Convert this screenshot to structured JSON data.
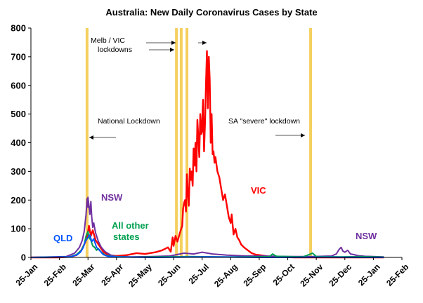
{
  "chart_data": {
    "type": "line",
    "title": "Australia: New Daily Coronavirus Cases by State",
    "xlabel": "",
    "ylabel": "",
    "ylim": [
      0,
      800
    ],
    "yticks": [
      "0",
      "100",
      "200",
      "300",
      "400",
      "500",
      "600",
      "700",
      "800"
    ],
    "xticks": [
      "25-Jan",
      "25-Feb",
      "25-Mar",
      "25-Apr",
      "25-May",
      "25-Jun",
      "25-Jul",
      "25-Aug",
      "25-Sep",
      "25-Oct",
      "25-Nov",
      "25-Dec",
      "25-Jan",
      "25-Feb"
    ],
    "grid": false,
    "legend": "none",
    "colors": {
      "VIC": "#ff0000",
      "NSW": "#7030a0",
      "QLD": "#0055ff",
      "All other states": "#00a050",
      "lockdown": "#f5d060"
    },
    "lockdown_dates": [
      "Mar 23",
      "Jun 28",
      "Jul 2",
      "Jul 8",
      "Nov 18"
    ],
    "series": [
      {
        "name": "VIC",
        "x": [
          "Jan 25",
          "Feb 25",
          "Mar 5",
          "Mar 12",
          "Mar 17",
          "Mar 20",
          "Mar 23",
          "Mar 26",
          "Mar 28",
          "Mar 30",
          "Apr 2",
          "Apr 6",
          "Apr 10",
          "Apr 15",
          "Apr 25",
          "May 5",
          "May 15",
          "May 25",
          "Jun 5",
          "Jun 12",
          "Jun 18",
          "Jun 21",
          "Jun 23",
          "Jun 25",
          "Jun 27",
          "Jun 29",
          "Jul 1",
          "Jul 3",
          "Jul 4",
          "Jul 5",
          "Jul 6",
          "Jul 7",
          "Jul 8",
          "Jul 9",
          "Jul 10",
          "Jul 11",
          "Jul 12",
          "Jul 13",
          "Jul 14",
          "Jul 15",
          "Jul 16",
          "Jul 17",
          "Jul 18",
          "Jul 19",
          "Jul 20",
          "Jul 21",
          "Jul 22",
          "Jul 23",
          "Jul 24",
          "Jul 25",
          "Jul 26",
          "Jul 27",
          "Jul 28",
          "Jul 29",
          "Jul 30",
          "Jul 31",
          "Aug 1",
          "Aug 2",
          "Aug 3",
          "Aug 4",
          "Aug 5",
          "Aug 6",
          "Aug 7",
          "Aug 8",
          "Aug 10",
          "Aug 12",
          "Aug 14",
          "Aug 16",
          "Aug 18",
          "Aug 20",
          "Aug 22",
          "Aug 24",
          "Aug 26",
          "Aug 28",
          "Aug 30",
          "Sep 1",
          "Sep 3",
          "Sep 5",
          "Sep 8",
          "Sep 12",
          "Sep 16",
          "Sep 20",
          "Sep 25",
          "Oct 5",
          "Oct 15",
          "Nov 1",
          "Dec 1",
          "Jan 1",
          "Feb 5"
        ],
        "values": [
          0,
          0,
          2,
          8,
          25,
          45,
          68,
          110,
          75,
          95,
          60,
          40,
          20,
          8,
          5,
          8,
          15,
          12,
          18,
          25,
          35,
          20,
          70,
          40,
          75,
          55,
          90,
          110,
          170,
          190,
          200,
          160,
          290,
          220,
          180,
          310,
          270,
          300,
          250,
          380,
          320,
          400,
          300,
          480,
          420,
          350,
          500,
          430,
          440,
          470,
          550,
          370,
          470,
          600,
          720,
          520,
          700,
          620,
          400,
          500,
          360,
          370,
          330,
          350,
          300,
          280,
          240,
          200,
          220,
          180,
          140,
          120,
          150,
          80,
          100,
          70,
          60,
          45,
          35,
          25,
          15,
          10,
          8,
          3,
          2,
          0,
          0,
          0,
          0
        ]
      },
      {
        "name": "NSW",
        "x": [
          "Jan 25",
          "Mar 1",
          "Mar 10",
          "Mar 15",
          "Mar 18",
          "Mar 20",
          "Mar 22",
          "Mar 23",
          "Mar 24",
          "Mar 25",
          "Mar 26",
          "Mar 27",
          "Mar 28",
          "Mar 29",
          "Mar 30",
          "Mar 31",
          "Apr 2",
          "Apr 5",
          "Apr 8",
          "Apr 12",
          "Apr 18",
          "Apr 25",
          "May 10",
          "Jun 1",
          "Jun 20",
          "Jul 5",
          "Jul 15",
          "Jul 25",
          "Aug 5",
          "Aug 20",
          "Sep 10",
          "Oct 1",
          "Oct 25",
          "Nov 20",
          "Dec 10",
          "Dec 15",
          "Dec 18",
          "Dec 20",
          "Dec 22",
          "Dec 25",
          "Dec 28",
          "Dec 31",
          "Jan 3",
          "Jan 8",
          "Jan 15",
          "Feb 5"
        ],
        "values": [
          0,
          3,
          15,
          35,
          60,
          90,
          150,
          205,
          175,
          210,
          180,
          150,
          195,
          140,
          105,
          120,
          85,
          55,
          35,
          20,
          8,
          3,
          2,
          3,
          5,
          15,
          12,
          18,
          12,
          8,
          5,
          5,
          3,
          3,
          5,
          12,
          28,
          35,
          22,
          18,
          25,
          12,
          10,
          6,
          4,
          2
        ]
      },
      {
        "name": "QLD",
        "x": [
          "Jan 25",
          "Mar 5",
          "Mar 12",
          "Mar 16",
          "Mar 19",
          "Mar 21",
          "Mar 23",
          "Mar 25",
          "Mar 27",
          "Mar 29",
          "Mar 31",
          "Apr 3",
          "Apr 6",
          "Apr 10",
          "Apr 15",
          "Apr 25",
          "Jun 1",
          "Aug 1",
          "Oct 1",
          "Dec 1",
          "Feb 5"
        ],
        "values": [
          0,
          2,
          8,
          18,
          35,
          55,
          65,
          70,
          78,
          55,
          65,
          35,
          25,
          10,
          4,
          2,
          0,
          2,
          0,
          1,
          0
        ]
      },
      {
        "name": "All other states",
        "x": [
          "Jan 25",
          "Mar 5",
          "Mar 12",
          "Mar 17",
          "Mar 20",
          "Mar 22",
          "Mar 24",
          "Mar 26",
          "Mar 28",
          "Mar 30",
          "Apr 1",
          "Apr 3",
          "Apr 5",
          "Apr 8",
          "Apr 12",
          "Apr 20",
          "May 10",
          "Jul 10",
          "Aug 10",
          "Sep 10",
          "Oct 5",
          "Oct 8",
          "Oct 12",
          "Nov 10",
          "Nov 15",
          "Nov 20",
          "Nov 25",
          "Dec 20",
          "Jan 10",
          "Feb 5"
        ],
        "values": [
          0,
          2,
          10,
          25,
          45,
          75,
          90,
          70,
          60,
          40,
          35,
          25,
          30,
          18,
          8,
          3,
          1,
          3,
          2,
          2,
          3,
          12,
          4,
          2,
          8,
          15,
          3,
          2,
          3,
          1
        ]
      }
    ],
    "annotations": [
      {
        "text": "Melb / VIC",
        "line2": "lockdowns",
        "arrow": "right"
      },
      {
        "text": "National Lockdown",
        "arrow": "left"
      },
      {
        "text": "SA \"severe\" lockdown",
        "arrow": "right"
      }
    ],
    "series_labels": [
      {
        "series": "NSW",
        "text": "NSW"
      },
      {
        "series": "QLD",
        "text": "QLD"
      },
      {
        "series": "All other states",
        "text": "All other",
        "line2": "states"
      },
      {
        "series": "VIC",
        "text": "VIC"
      },
      {
        "series": "NSW",
        "text": "NSW"
      }
    ]
  }
}
